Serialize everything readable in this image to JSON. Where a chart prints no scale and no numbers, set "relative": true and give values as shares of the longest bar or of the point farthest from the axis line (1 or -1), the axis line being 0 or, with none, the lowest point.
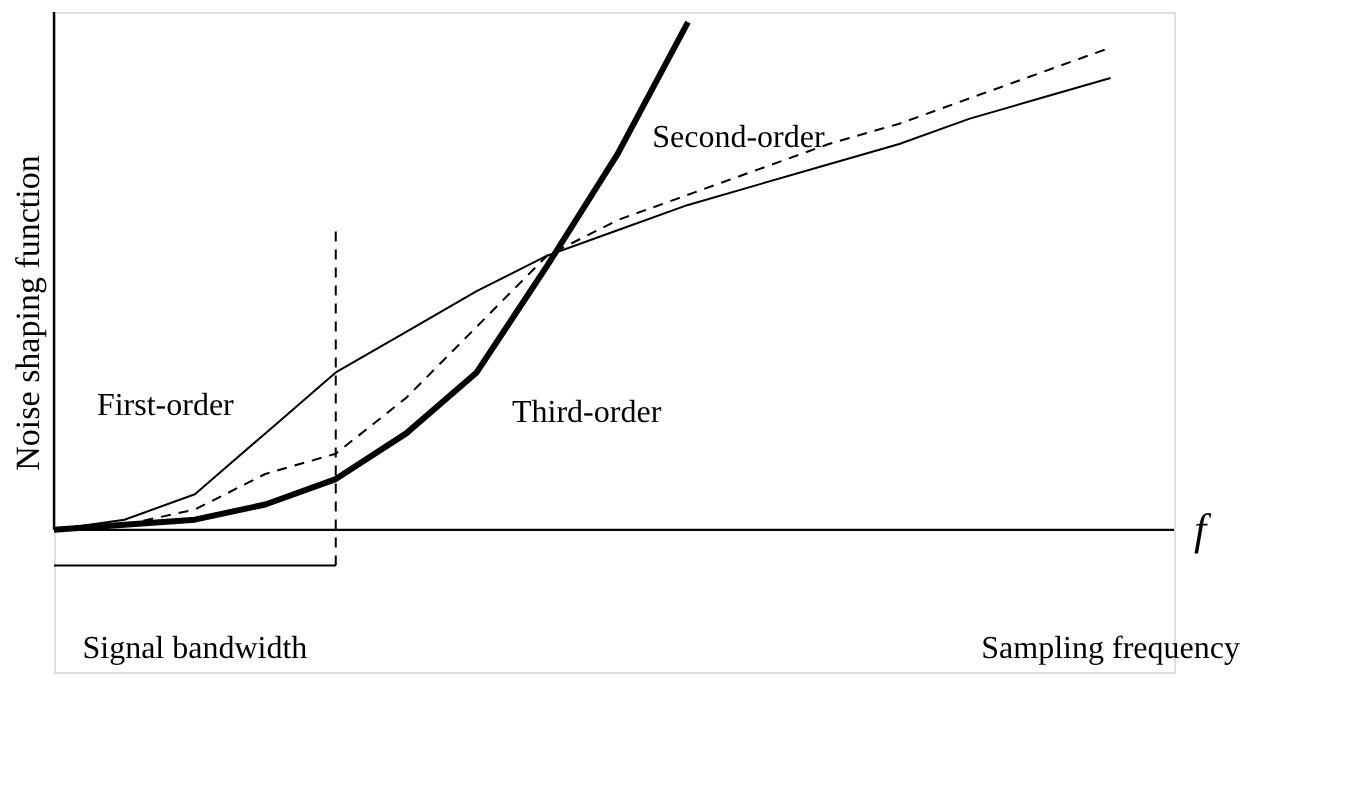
{
  "chart_data": {
    "type": "line",
    "relative": true,
    "xlabel": "f",
    "ylabel": "Noise shaping function",
    "tick_labels": false,
    "grid": false,
    "categories": [
      null,
      null,
      null,
      null,
      null,
      null,
      null,
      null,
      null,
      null,
      null,
      null,
      null,
      null,
      null,
      null
    ],
    "series": [
      {
        "name": "First-order",
        "color": "#000000",
        "line_style": "solid",
        "values": [
          0,
          0.02,
          0.07,
          0.19,
          0.31,
          0.39,
          0.47,
          0.54,
          0.59,
          0.64,
          0.68,
          0.72,
          0.76,
          0.81,
          0.85,
          0.89
        ]
      },
      {
        "name": "Second-order",
        "color": "#000000",
        "line_style": "dashed",
        "values": [
          0,
          0.01,
          0.04,
          0.11,
          0.15,
          0.26,
          0.4,
          0.54,
          0.61,
          0.66,
          0.71,
          0.76,
          0.8,
          0.85,
          0.9,
          0.95
        ]
      },
      {
        "name": "Third-order",
        "color": "#000000",
        "line_style": "solid",
        "values": [
          0,
          0.01,
          0.02,
          0.05,
          0.1,
          0.19,
          0.31,
          0.52,
          0.74,
          1,
          null,
          null,
          null,
          null,
          null,
          null
        ]
      }
    ],
    "annotations": [
      "Signal bandwidth",
      "Sampling frequency"
    ]
  }
}
